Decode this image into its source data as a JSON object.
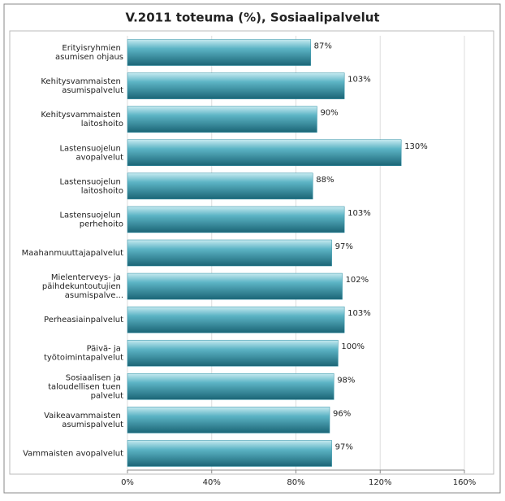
{
  "chart_data": {
    "type": "bar",
    "orientation": "horizontal",
    "title": "V.2011 toteuma (%), Sosiaalipalvelut",
    "categories": [
      "Erityisryhmien asumisen ohjaus",
      "Kehitysvammaisten asumispalvelut",
      "Kehitysvammaisten laitoshoito",
      "Lastensuojelun avopalvelut",
      "Lastensuojelun laitoshoito",
      "Lastensuojelun perhehoito",
      "Maahanmuuttajapalvelut",
      "Mielenterveys- ja päihdekuntoutujien asumispalve...",
      "Perheasiainpalvelut",
      "Päivä- ja työtoimintapalvelut",
      "Sosiaalisen ja taloudellisen tuen palvelut",
      "Vaikeavammaisten asumispalvelut",
      "Vammaisten avopalvelut"
    ],
    "values": [
      87,
      103,
      90,
      130,
      88,
      103,
      97,
      102,
      103,
      100,
      98,
      96,
      97
    ],
    "value_labels": [
      "87%",
      "103%",
      "90%",
      "130%",
      "88%",
      "103%",
      "97%",
      "102%",
      "103%",
      "100%",
      "98%",
      "96%",
      "97%"
    ],
    "color": "#2b8ea3",
    "xlim": [
      0,
      160
    ],
    "xticks": [
      {
        "value": 0,
        "label": "0%"
      },
      {
        "value": 40,
        "label": "40%"
      },
      {
        "value": 80,
        "label": "80%"
      },
      {
        "value": 120,
        "label": "120%"
      },
      {
        "value": 160,
        "label": "160%"
      }
    ],
    "grid": true
  }
}
